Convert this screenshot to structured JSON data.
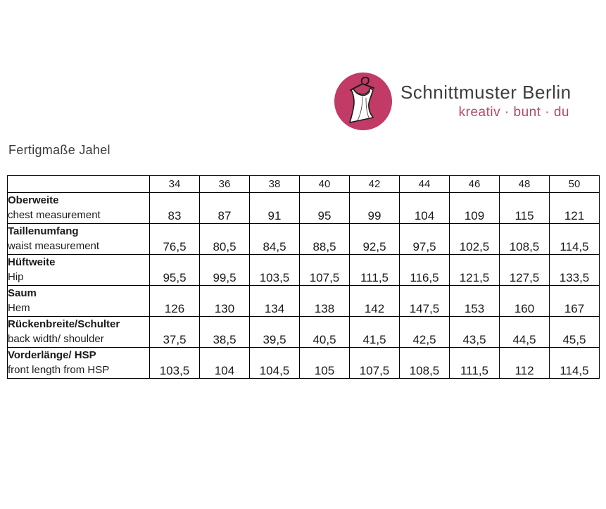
{
  "logo": {
    "brand": "Schnittmuster Berlin",
    "tagline": "kreativ · bunt · du",
    "icon": "dress-on-hanger-icon",
    "colors": {
      "circle": "#c23a66",
      "brand_text": "#3d3d3d",
      "tagline_text": "#b5476c",
      "dress_fill": "#ffffff",
      "dress_outline": "#1a1a1a"
    }
  },
  "page": {
    "title": "Fertigmaße Jahel"
  },
  "table": {
    "corner_label": "",
    "sizes": [
      "34",
      "36",
      "38",
      "40",
      "42",
      "44",
      "46",
      "48",
      "50"
    ],
    "rows": [
      {
        "label_de": "Oberweite",
        "label_en": "chest measurement",
        "values": [
          "83",
          "87",
          "91",
          "95",
          "99",
          "104",
          "109",
          "115",
          "121"
        ]
      },
      {
        "label_de": "Taillenumfang",
        "label_en": "waist measurement",
        "values": [
          "76,5",
          "80,5",
          "84,5",
          "88,5",
          "92,5",
          "97,5",
          "102,5",
          "108,5",
          "114,5"
        ]
      },
      {
        "label_de": "Hüftweite",
        "label_en": "Hip",
        "values": [
          "95,5",
          "99,5",
          "103,5",
          "107,5",
          "111,5",
          "116,5",
          "121,5",
          "127,5",
          "133,5"
        ]
      },
      {
        "label_de": "Saum",
        "label_en": "Hem",
        "values": [
          "126",
          "130",
          "134",
          "138",
          "142",
          "147,5",
          "153",
          "160",
          "167"
        ]
      },
      {
        "label_de": "Rückenbreite/Schulter",
        "label_en": "back width/ shoulder",
        "values": [
          "37,5",
          "38,5",
          "39,5",
          "40,5",
          "41,5",
          "42,5",
          "43,5",
          "44,5",
          "45,5"
        ]
      },
      {
        "label_de": "Vorderlänge/ HSP",
        "label_en": "front length from HSP",
        "values": [
          "103,5",
          "104",
          "104,5",
          "105",
          "107,5",
          "108,5",
          "111,5",
          "112",
          "114,5"
        ]
      }
    ]
  }
}
